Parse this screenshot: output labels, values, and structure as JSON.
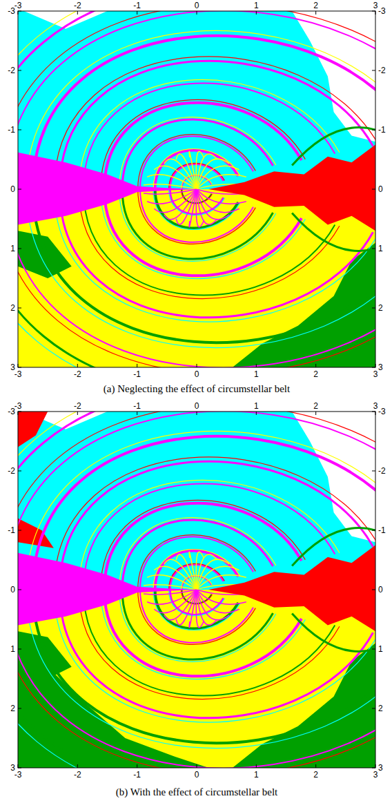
{
  "chart_data": [
    {
      "type": "basin_map",
      "title": "(a) Neglecting the effect of circumstellar belt",
      "xlim": [
        -3,
        3
      ],
      "ylim": [
        3,
        -3
      ],
      "xticks": [
        -3,
        -2,
        -1,
        0,
        1,
        2,
        3
      ],
      "yticks": [
        -3,
        -2,
        -1,
        0,
        1,
        2,
        3
      ],
      "colors": [
        "#00ffff",
        "#ff00ff",
        "#ffff00",
        "#ff0000",
        "#00a000",
        "#ffffff"
      ]
    },
    {
      "type": "basin_map",
      "title": "(b) With the effect of circumstellar belt",
      "xlim": [
        -3,
        3
      ],
      "ylim": [
        3,
        -3
      ],
      "xticks": [
        -3,
        -2,
        -1,
        0,
        1,
        2,
        3
      ],
      "yticks": [
        -3,
        -2,
        -1,
        0,
        1,
        2,
        3
      ],
      "colors": [
        "#00ffff",
        "#ff00ff",
        "#ffff00",
        "#ff0000",
        "#00a000",
        "#ffffff"
      ]
    }
  ]
}
